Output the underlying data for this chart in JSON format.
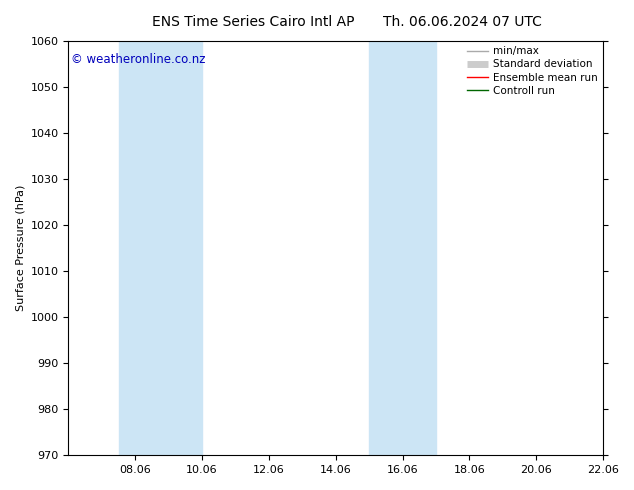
{
  "title_left": "ENS Time Series Cairo Intl AP",
  "title_right": "Th. 06.06.2024 07 UTC",
  "ylabel": "Surface Pressure (hPa)",
  "ylim": [
    970,
    1060
  ],
  "yticks": [
    970,
    980,
    990,
    1000,
    1010,
    1020,
    1030,
    1040,
    1050,
    1060
  ],
  "xlim_start": 6.06,
  "xlim_end": 22.06,
  "xtick_labels": [
    "08.06",
    "10.06",
    "12.06",
    "14.06",
    "16.06",
    "18.06",
    "20.06",
    "22.06"
  ],
  "xtick_positions": [
    8.06,
    10.06,
    12.06,
    14.06,
    16.06,
    18.06,
    20.06,
    22.06
  ],
  "watermark": "© weatheronline.co.nz",
  "watermark_color": "#0000bb",
  "bg_color": "#ffffff",
  "plot_bg_color": "#ffffff",
  "shaded_bands": [
    {
      "x_start": 7.56,
      "x_end": 10.06,
      "color": "#cce5f5"
    },
    {
      "x_start": 15.06,
      "x_end": 17.06,
      "color": "#cce5f5"
    }
  ],
  "legend_entries": [
    {
      "label": "min/max",
      "color": "#aaaaaa",
      "linewidth": 1.0,
      "linestyle": "-"
    },
    {
      "label": "Standard deviation",
      "color": "#cccccc",
      "linewidth": 5,
      "linestyle": "-"
    },
    {
      "label": "Ensemble mean run",
      "color": "#ff0000",
      "linewidth": 1.0,
      "linestyle": "-"
    },
    {
      "label": "Controll run",
      "color": "#006600",
      "linewidth": 1.0,
      "linestyle": "-"
    }
  ],
  "title_fontsize": 10,
  "axis_label_fontsize": 8,
  "tick_fontsize": 8,
  "legend_fontsize": 7.5,
  "watermark_fontsize": 8.5
}
